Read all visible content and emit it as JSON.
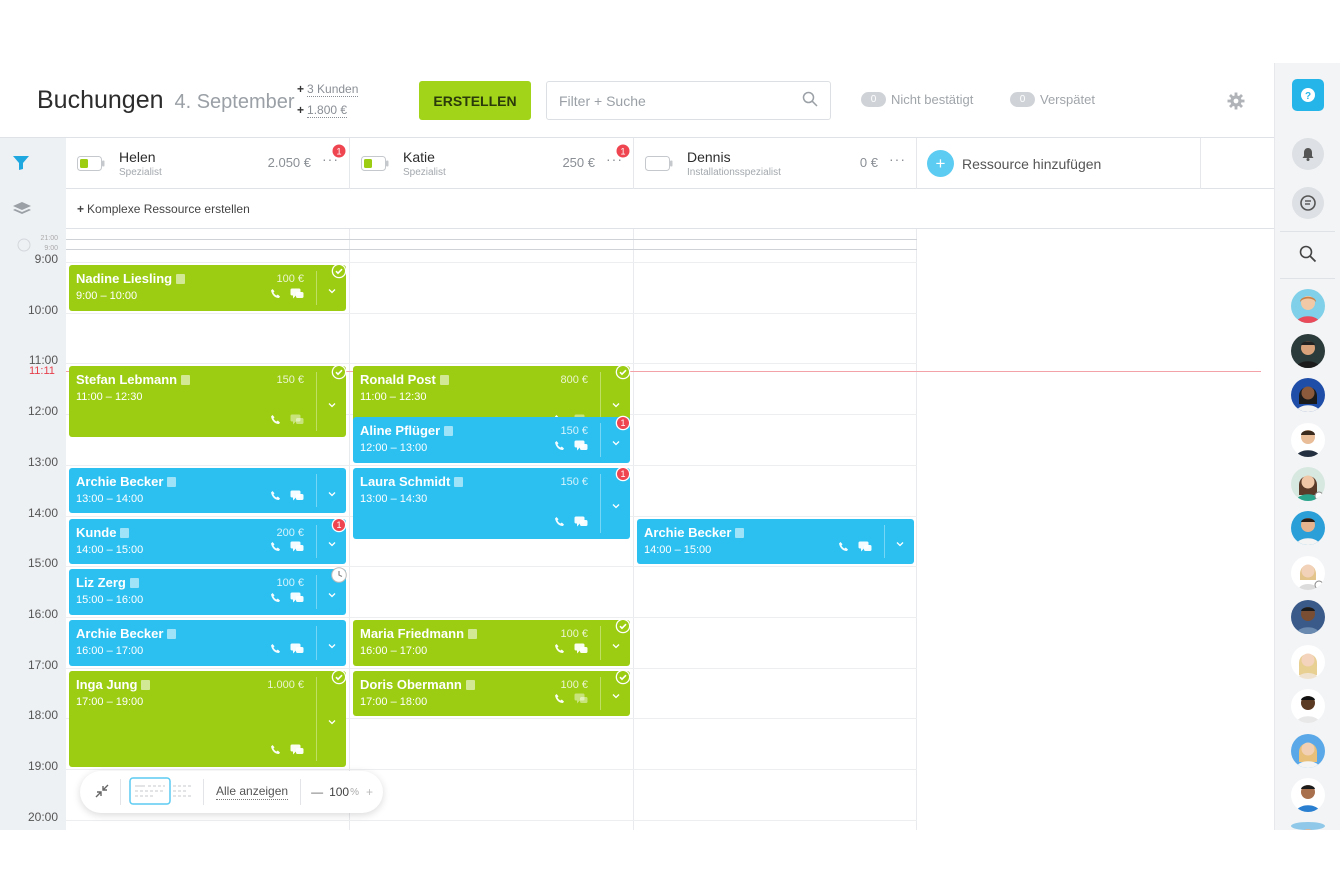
{
  "header": {
    "title": "Buchungen",
    "date": "4. September",
    "stats": [
      {
        "plus": "+",
        "value": "3 Kunden"
      },
      {
        "plus": "+",
        "value": "1.800 €"
      }
    ],
    "create_label": "ERSTELLEN",
    "search_placeholder": "Filter + Suche",
    "toggles": [
      {
        "count": "0",
        "label": "Nicht bestätigt"
      },
      {
        "count": "0",
        "label": "Verspätet"
      }
    ]
  },
  "resources": [
    {
      "name": "Helen",
      "role": "Spezialist",
      "amount": "2.050 €",
      "more": "···",
      "badge": "1",
      "battery": "partial"
    },
    {
      "name": "Katie",
      "role": "Spezialist",
      "amount": "250 €",
      "more": "···",
      "badge": "1",
      "battery": "partial"
    },
    {
      "name": "Dennis",
      "role": "Installationsspezialist",
      "amount": "0 €",
      "more": "···",
      "badge": "",
      "battery": "empty"
    }
  ],
  "add_resource_label": "Ressource hinzufügen",
  "add_resource_plus": "+",
  "complex_resource": {
    "plus": "+",
    "label": "Komplexe Ressource erstellen"
  },
  "time": {
    "mini_labels": [
      "21:00",
      "9:00"
    ],
    "hours": [
      "9:00",
      "10:00",
      "11:00",
      "12:00",
      "13:00",
      "14:00",
      "15:00",
      "16:00",
      "17:00",
      "18:00",
      "19:00",
      "20:00"
    ],
    "now": "11:11"
  },
  "bookings": [
    {
      "col": 0,
      "name": "Nadine Liesling",
      "time": "9:00 – 10:00",
      "price": "100 €",
      "color": "green",
      "status": "check"
    },
    {
      "col": 0,
      "name": "Stefan Lebmann",
      "time": "11:00 – 12:30",
      "price": "150 €",
      "color": "green",
      "status": "check"
    },
    {
      "col": 0,
      "name": "Archie Becker",
      "time": "13:00 – 14:00",
      "price": "",
      "color": "blue",
      "status": ""
    },
    {
      "col": 0,
      "name": "Kunde",
      "time": "14:00 – 15:00",
      "price": "200 €",
      "color": "blue",
      "status": "alert"
    },
    {
      "col": 0,
      "name": "Liz Zerg",
      "time": "15:00 – 16:00",
      "price": "100 €",
      "color": "blue",
      "status": "clock"
    },
    {
      "col": 0,
      "name": "Archie Becker",
      "time": "16:00 – 17:00",
      "price": "",
      "color": "blue",
      "status": ""
    },
    {
      "col": 0,
      "name": "Inga Jung",
      "time": "17:00 – 19:00",
      "price": "1.000 €",
      "color": "green",
      "status": "check"
    },
    {
      "col": 1,
      "name": "Ronald Post",
      "time": "11:00 – 12:30",
      "price": "800 €",
      "color": "green",
      "status": "check"
    },
    {
      "col": 1,
      "name": "Aline Pflüger",
      "time": "12:00 – 13:00",
      "price": "150 €",
      "color": "blue",
      "status": "alert"
    },
    {
      "col": 1,
      "name": "Laura Schmidt",
      "time": "13:00 – 14:30",
      "price": "150 €",
      "color": "blue",
      "status": "alert"
    },
    {
      "col": 1,
      "name": "Maria Friedmann",
      "time": "16:00 – 17:00",
      "price": "100 €",
      "color": "green",
      "status": "check"
    },
    {
      "col": 1,
      "name": "Doris Obermann",
      "time": "17:00 – 18:00",
      "price": "100 €",
      "color": "green",
      "status": "check"
    },
    {
      "col": 2,
      "name": "Archie Becker",
      "time": "14:00 – 15:00",
      "price": "",
      "color": "blue",
      "status": ""
    }
  ],
  "toolbar": {
    "show_all": "Alle anzeigen",
    "zoom_minus": "—",
    "zoom_value": "100",
    "zoom_unit": "%",
    "zoom_plus": "+"
  },
  "colors": {
    "accent_green": "#9ccd12",
    "accent_blue": "#2cc0f1",
    "create_button": "#a2d41a",
    "alert": "#ee4550",
    "now_line": "#f3a2a8"
  }
}
